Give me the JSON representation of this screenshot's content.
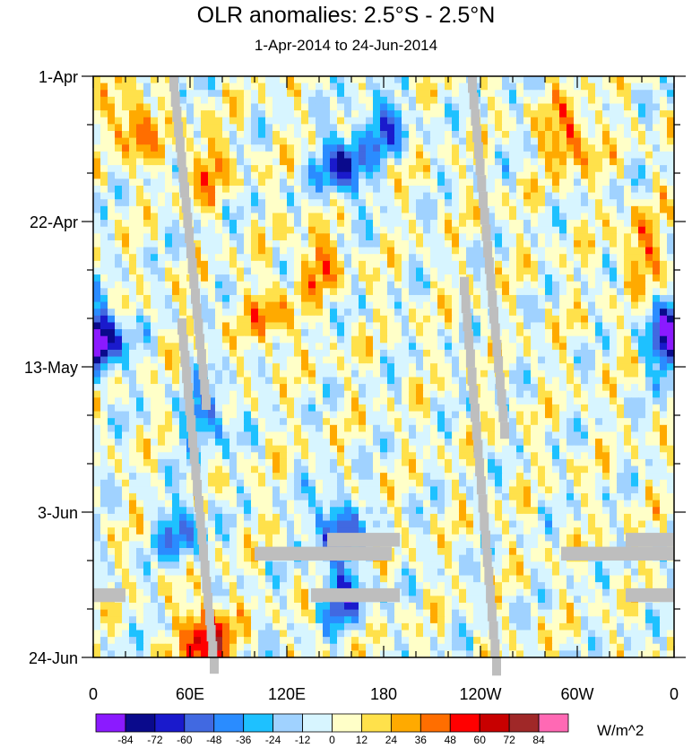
{
  "chart_data": {
    "type": "heatmap",
    "title": "OLR anomalies: 2.5°S - 2.5°N",
    "subtitle": "1-Apr-2014 to 24-Jun-2014",
    "x_tick_labels": [
      "0",
      "60E",
      "120E",
      "180",
      "120W",
      "60W",
      "0"
    ],
    "x_tick_values_deg_east": [
      0,
      60,
      120,
      180,
      240,
      300,
      360
    ],
    "x_range_deg_east": [
      0,
      360
    ],
    "y_tick_labels": [
      "1-Apr",
      "22-Apr",
      "13-May",
      "3-Jun",
      "24-Jun"
    ],
    "y_range": [
      "2014-04-01",
      "2014-06-24"
    ],
    "y_direction": "time increases downward",
    "colorbar": {
      "units": "W/m^2",
      "labels": [
        "-84",
        "-72",
        "-60",
        "-48",
        "-36",
        "-24",
        "-12",
        "0",
        "12",
        "24",
        "36",
        "48",
        "60",
        "72",
        "84"
      ],
      "levels": [
        -84,
        -72,
        -60,
        -48,
        -36,
        -24,
        -12,
        0,
        12,
        24,
        36,
        48,
        60,
        72,
        84
      ],
      "colors": [
        "#8b1aff",
        "#0a0a8c",
        "#1a1acc",
        "#4169e1",
        "#2a8cff",
        "#1ec1ff",
        "#a0d2ff",
        "#d7f5ff",
        "#ffffc8",
        "#ffe14b",
        "#ffaa00",
        "#ff6e00",
        "#ff0000",
        "#c80000",
        "#a02828",
        "#ff69b4"
      ],
      "missing_color": "#bebebe"
    },
    "anomaly_features": [
      {
        "kind": "negative",
        "lon": 155,
        "date": "2014-04-14",
        "value": -72
      },
      {
        "kind": "negative",
        "lon": 180,
        "date": "2014-04-08",
        "value": -48
      },
      {
        "kind": "negative",
        "lon": 5,
        "date": "2014-05-09",
        "value": -60
      },
      {
        "kind": "negative",
        "lon": 358,
        "date": "2014-05-09",
        "value": -60
      },
      {
        "kind": "negative",
        "lon": 70,
        "date": "2014-05-20",
        "value": -48
      },
      {
        "kind": "negative",
        "lon": 150,
        "date": "2014-06-05",
        "value": -60
      },
      {
        "kind": "negative",
        "lon": 55,
        "date": "2014-06-06",
        "value": -48
      },
      {
        "kind": "negative",
        "lon": 155,
        "date": "2014-06-15",
        "value": -60
      },
      {
        "kind": "positive",
        "lon": 70,
        "date": "2014-06-21",
        "value": 72
      },
      {
        "kind": "positive",
        "lon": 70,
        "date": "2014-04-14",
        "value": 36
      },
      {
        "kind": "positive",
        "lon": 25,
        "date": "2014-04-08",
        "value": 48
      },
      {
        "kind": "positive",
        "lon": 295,
        "date": "2014-04-10",
        "value": 48
      },
      {
        "kind": "positive",
        "lon": 140,
        "date": "2014-04-28",
        "value": 36
      },
      {
        "kind": "positive",
        "lon": 110,
        "date": "2014-05-06",
        "value": 36
      },
      {
        "kind": "positive",
        "lon": 340,
        "date": "2014-04-26",
        "value": 36
      }
    ],
    "missing_streaks": [
      {
        "lon_start": 50,
        "lon_end": 70,
        "date_start": "2014-04-01",
        "date_end": "2014-05-17"
      },
      {
        "lon_start": 55,
        "lon_end": 75,
        "date_start": "2014-05-06",
        "date_end": "2014-06-24"
      },
      {
        "lon_start": 235,
        "lon_end": 255,
        "date_start": "2014-04-01",
        "date_end": "2014-05-21"
      },
      {
        "lon_start": 230,
        "lon_end": 250,
        "date_start": "2014-04-30",
        "date_end": "2014-06-24"
      }
    ],
    "missing_bands": [
      {
        "lon_start": 0,
        "lon_end": 20,
        "date_start": "2014-06-14",
        "date_end": "2014-06-16"
      },
      {
        "lon_start": 100,
        "lon_end": 185,
        "date_start": "2014-06-08",
        "date_end": "2014-06-10"
      },
      {
        "lon_start": 145,
        "lon_end": 190,
        "date_start": "2014-06-06",
        "date_end": "2014-06-08"
      },
      {
        "lon_start": 135,
        "lon_end": 190,
        "date_start": "2014-06-14",
        "date_end": "2014-06-16"
      },
      {
        "lon_start": 290,
        "lon_end": 360,
        "date_start": "2014-06-08",
        "date_end": "2014-06-10"
      },
      {
        "lon_start": 330,
        "lon_end": 360,
        "date_start": "2014-06-06",
        "date_end": "2014-06-08"
      },
      {
        "lon_start": 330,
        "lon_end": 360,
        "date_start": "2014-06-14",
        "date_end": "2014-06-16"
      }
    ]
  }
}
